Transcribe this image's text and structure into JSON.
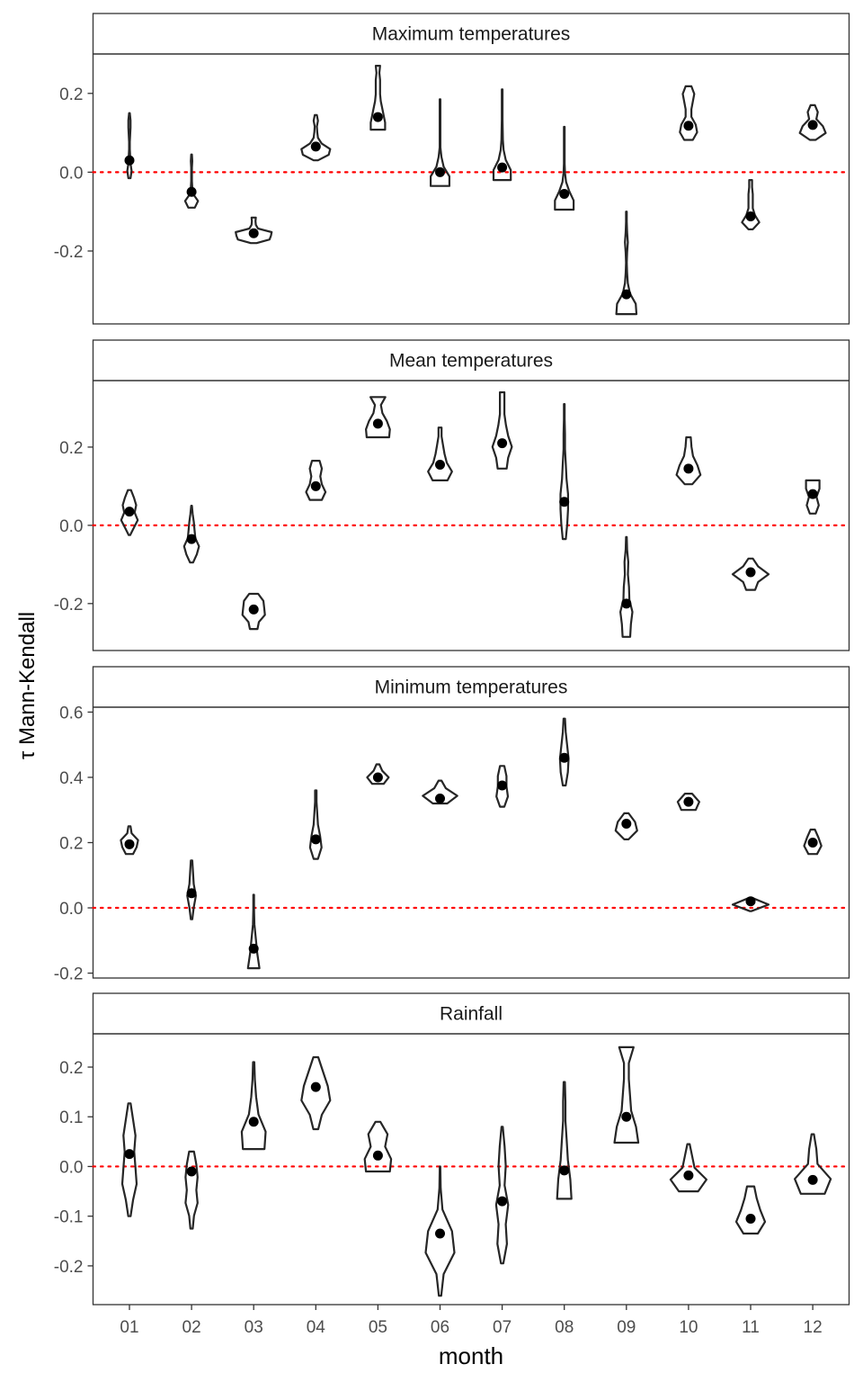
{
  "chart_data": {
    "type": "violin",
    "xlabel": "month",
    "ylabel": "τ Mann-Kendall",
    "categories": [
      "01",
      "02",
      "03",
      "04",
      "05",
      "06",
      "07",
      "08",
      "09",
      "10",
      "11",
      "12"
    ],
    "reference_line": {
      "y": 0,
      "color": "#ff0000",
      "style": "dotted"
    },
    "colors": {
      "violin_stroke": "#262626",
      "point": "#000000",
      "strip_fill": "#ffffff",
      "panel_border": "#333333"
    },
    "panels": [
      {
        "title": "Maximum temperatures",
        "ylim": [
          -0.385,
          0.3
        ],
        "yticks": [
          -0.2,
          0.0,
          0.2
        ],
        "yticklabels": [
          "-0.2",
          "0.0",
          "0.2"
        ],
        "points": [
          0.03,
          -0.05,
          -0.155,
          0.065,
          0.14,
          0.0,
          0.012,
          -0.055,
          -0.31,
          0.118,
          -0.112,
          0.12
        ],
        "violins": [
          {
            "min": -0.015,
            "max": 0.15,
            "profile": [
              0.15,
              0.3,
              0.15,
              0.1,
              0.05,
              0.05,
              0.1,
              0.15,
              0.15,
              0.05
            ]
          },
          {
            "min": -0.09,
            "max": 0.045,
            "profile": [
              0.45,
              0.9,
              0.25,
              0.1,
              0.05,
              0.05,
              0.05,
              0.1,
              0.05
            ]
          },
          {
            "min": -0.18,
            "max": -0.115,
            "profile": [
              0.4,
              2.2,
              2.4,
              2.5,
              0.6,
              0.3,
              0.25,
              0.3
            ]
          },
          {
            "min": 0.03,
            "max": 0.145,
            "profile": [
              0.3,
              1.8,
              2.0,
              0.8,
              0.3,
              0.2,
              0.15,
              0.3,
              0.15
            ]
          },
          {
            "min": 0.108,
            "max": 0.27,
            "profile": [
              1.0,
              1.0,
              0.8,
              0.6,
              0.4,
              0.3,
              0.3,
              0.3,
              0.2,
              0.3
            ]
          },
          {
            "min": -0.035,
            "max": 0.185,
            "profile": [
              1.3,
              1.3,
              0.5,
              0.2,
              0.05,
              0.05,
              0.05,
              0.05,
              0.05,
              0.05
            ]
          },
          {
            "min": -0.02,
            "max": 0.21,
            "profile": [
              1.2,
              1.2,
              0.5,
              0.2,
              0.1,
              0.08,
              0.05,
              0.05,
              0.05,
              0.05
            ]
          },
          {
            "min": -0.095,
            "max": 0.115,
            "profile": [
              1.3,
              1.3,
              0.7,
              0.25,
              0.1,
              0.05,
              0.05,
              0.05,
              0.05,
              0.05
            ]
          },
          {
            "min": -0.36,
            "max": -0.1,
            "profile": [
              1.4,
              1.3,
              0.5,
              0.2,
              0.1,
              0.05,
              0.1,
              0.2,
              0.1,
              0.05,
              0.05
            ]
          },
          {
            "min": 0.082,
            "max": 0.218,
            "profile": [
              0.6,
              1.2,
              1.0,
              0.4,
              0.4,
              0.6,
              0.8,
              0.4
            ]
          },
          {
            "min": -0.145,
            "max": -0.02,
            "profile": [
              0.3,
              1.2,
              0.6,
              0.3,
              0.3,
              0.3,
              0.2,
              0.2
            ]
          },
          {
            "min": 0.082,
            "max": 0.17,
            "profile": [
              0.4,
              1.8,
              1.4,
              0.5,
              0.7,
              0.3
            ]
          }
        ]
      },
      {
        "title": "Mean temperatures",
        "ylim": [
          -0.32,
          0.37
        ],
        "yticks": [
          -0.2,
          0.0,
          0.2
        ],
        "yticklabels": [
          "-0.2",
          "0.0",
          "0.2"
        ],
        "points": [
          0.035,
          -0.035,
          -0.215,
          0.1,
          0.26,
          0.155,
          0.21,
          0.06,
          -0.2,
          0.145,
          -0.12,
          0.08
        ],
        "violins": [
          {
            "min": -0.025,
            "max": 0.09,
            "profile": [
              0.1,
              0.6,
              1.1,
              0.7,
              0.9,
              0.6,
              0.2
            ]
          },
          {
            "min": -0.095,
            "max": 0.05,
            "profile": [
              0.2,
              0.7,
              1.0,
              0.5,
              0.4,
              0.3,
              0.15,
              0.05
            ]
          },
          {
            "min": -0.265,
            "max": -0.175,
            "profile": [
              0.5,
              0.7,
              1.5,
              1.4,
              1.3,
              0.6
            ]
          },
          {
            "min": 0.065,
            "max": 0.165,
            "profile": [
              0.8,
              1.3,
              0.8,
              0.6,
              0.8,
              0.5
            ]
          },
          {
            "min": 0.225,
            "max": 0.328,
            "profile": [
              1.5,
              1.6,
              1.2,
              0.6,
              0.4,
              1.0
            ]
          },
          {
            "min": 0.115,
            "max": 0.25,
            "profile": [
              1.0,
              1.6,
              0.9,
              0.6,
              0.4,
              0.2,
              0.2
            ]
          },
          {
            "min": 0.145,
            "max": 0.34,
            "profile": [
              0.6,
              0.8,
              1.3,
              0.8,
              0.5,
              0.3,
              0.3,
              0.3
            ]
          },
          {
            "min": -0.035,
            "max": 0.31,
            "profile": [
              0.2,
              0.4,
              0.5,
              0.5,
              0.3,
              0.2,
              0.1,
              0.1,
              0.05,
              0.05
            ]
          },
          {
            "min": -0.285,
            "max": -0.03,
            "profile": [
              0.5,
              0.6,
              0.8,
              0.4,
              0.35,
              0.2,
              0.25,
              0.1,
              0.05
            ]
          },
          {
            "min": 0.105,
            "max": 0.225,
            "profile": [
              0.5,
              1.6,
              1.2,
              0.6,
              0.4,
              0.3
            ]
          },
          {
            "min": -0.165,
            "max": -0.085,
            "profile": [
              0.6,
              1.0,
              2.4,
              1.0,
              0.3
            ]
          },
          {
            "min": 0.03,
            "max": 0.115,
            "profile": [
              0.4,
              0.8,
              0.5,
              0.9,
              0.9
            ]
          }
        ]
      },
      {
        "title": "Minimum temperatures",
        "ylim": [
          -0.215,
          0.615
        ],
        "yticks": [
          -0.2,
          0.0,
          0.2,
          0.4,
          0.6
        ],
        "yticklabels": [
          "-0.2",
          "0.0",
          "0.2",
          "0.4",
          "0.6"
        ],
        "points": [
          0.195,
          0.045,
          -0.125,
          0.21,
          0.4,
          0.335,
          0.375,
          0.46,
          0.258,
          0.325,
          0.02,
          0.2
        ],
        "violins": [
          {
            "min": 0.165,
            "max": 0.25,
            "profile": [
              0.5,
              1.0,
              1.2,
              0.3,
              0.15
            ]
          },
          {
            "min": -0.035,
            "max": 0.145,
            "profile": [
              0.1,
              0.3,
              0.6,
              0.3,
              0.2,
              0.1
            ]
          },
          {
            "min": -0.185,
            "max": 0.04,
            "profile": [
              0.8,
              0.5,
              0.3,
              0.1,
              0.05,
              0.05
            ]
          },
          {
            "min": 0.15,
            "max": 0.36,
            "profile": [
              0.3,
              0.8,
              0.6,
              0.3,
              0.2,
              0.1,
              0.1
            ]
          },
          {
            "min": 0.38,
            "max": 0.44,
            "profile": [
              0.8,
              1.5,
              0.6,
              0.2
            ]
          },
          {
            "min": 0.32,
            "max": 0.39,
            "profile": [
              1.0,
              2.4,
              0.8,
              0.2
            ]
          },
          {
            "min": 0.31,
            "max": 0.435,
            "profile": [
              0.3,
              0.8,
              0.6,
              0.6,
              0.3
            ]
          },
          {
            "min": 0.375,
            "max": 0.58,
            "profile": [
              0.2,
              0.5,
              0.6,
              0.4,
              0.2,
              0.1
            ]
          },
          {
            "min": 0.21,
            "max": 0.29,
            "profile": [
              0.3,
              1.5,
              1.2,
              0.3
            ]
          },
          {
            "min": 0.3,
            "max": 0.35,
            "profile": [
              1.0,
              1.5,
              0.5
            ]
          },
          {
            "min": -0.01,
            "max": 0.03,
            "profile": [
              0.1,
              2.5,
              0.3
            ]
          },
          {
            "min": 0.165,
            "max": 0.24,
            "profile": [
              0.6,
              1.2,
              0.8,
              0.3
            ]
          }
        ]
      },
      {
        "title": "Rainfall",
        "ylim": [
          -0.278,
          0.267
        ],
        "yticks": [
          -0.2,
          -0.1,
          0.0,
          0.1,
          0.2
        ],
        "yticklabels": [
          "-0.2",
          "-0.1",
          "0.0",
          "0.1",
          "0.2"
        ],
        "points": [
          0.025,
          -0.01,
          0.09,
          0.16,
          0.022,
          -0.135,
          -0.07,
          -0.008,
          0.1,
          -0.018,
          -0.105,
          -0.027
        ],
        "violins": [
          {
            "min": -0.1,
            "max": 0.127,
            "profile": [
              0.1,
              0.3,
              0.6,
              0.5,
              0.4,
              0.5,
              0.3,
              0.1
            ]
          },
          {
            "min": -0.125,
            "max": 0.03,
            "profile": [
              0.1,
              0.2,
              0.5,
              0.4,
              0.5,
              0.4,
              0.2
            ]
          },
          {
            "min": 0.035,
            "max": 0.21,
            "profile": [
              0.9,
              1.0,
              0.4,
              0.2,
              0.1,
              0.05
            ]
          },
          {
            "min": 0.075,
            "max": 0.22,
            "profile": [
              0.2,
              0.5,
              1.2,
              1.0,
              0.6,
              0.2
            ]
          },
          {
            "min": -0.01,
            "max": 0.09,
            "profile": [
              1.0,
              1.1,
              0.6,
              0.8,
              0.2
            ]
          },
          {
            "min": -0.26,
            "max": 0.0,
            "profile": [
              0.1,
              0.3,
              1.2,
              1.0,
              0.2,
              0.05,
              0.02
            ]
          },
          {
            "min": -0.195,
            "max": 0.08,
            "profile": [
              0.1,
              0.4,
              0.3,
              0.5,
              0.2,
              0.3,
              0.2,
              0.05
            ]
          },
          {
            "min": -0.065,
            "max": 0.17,
            "profile": [
              0.6,
              0.5,
              0.3,
              0.2,
              0.1,
              0.1,
              0.05
            ]
          },
          {
            "min": 0.048,
            "max": 0.24,
            "profile": [
              1.0,
              0.8,
              0.4,
              0.3,
              0.2,
              0.2,
              0.6
            ]
          },
          {
            "min": -0.05,
            "max": 0.045,
            "profile": [
              0.8,
              1.5,
              0.5,
              0.3,
              0.1
            ]
          },
          {
            "min": -0.135,
            "max": -0.04,
            "profile": [
              0.6,
              1.2,
              0.8,
              0.5,
              0.3
            ]
          },
          {
            "min": -0.055,
            "max": 0.065,
            "profile": [
              1.0,
              1.5,
              0.4,
              0.3,
              0.1
            ]
          }
        ]
      }
    ]
  }
}
